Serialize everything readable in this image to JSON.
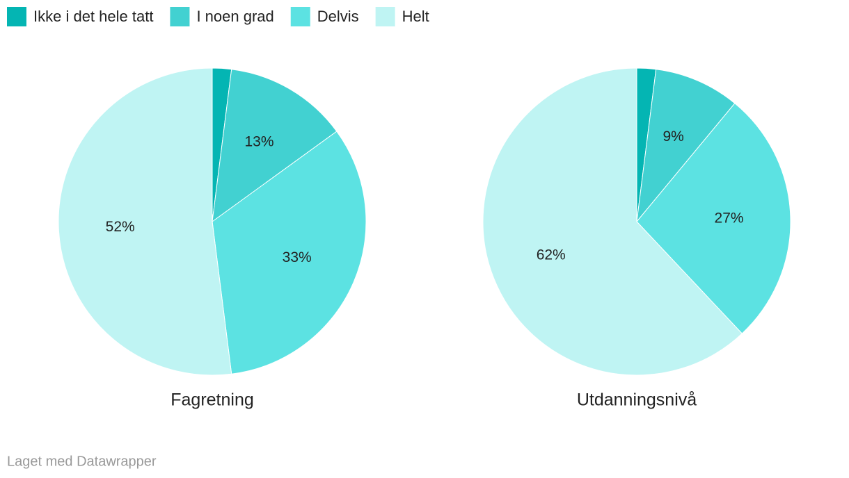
{
  "chart_data": [
    {
      "type": "pie",
      "title": "Fagretning",
      "categories": [
        "Ikke i det hele tatt",
        "I noen grad",
        "Delvis",
        "Helt"
      ],
      "values": [
        2,
        13,
        33,
        52
      ],
      "value_labels": [
        null,
        "13%",
        "33%",
        "52%"
      ],
      "colors": [
        "#04b5b3",
        "#42d1d1",
        "#5ce2e2",
        "#bff4f3"
      ]
    },
    {
      "type": "pie",
      "title": "Utdanningsnivå",
      "categories": [
        "Ikke i det hele tatt",
        "I noen grad",
        "Delvis",
        "Helt"
      ],
      "values": [
        2,
        9,
        27,
        62
      ],
      "value_labels": [
        null,
        "9%",
        "27%",
        "62%"
      ],
      "colors": [
        "#04b5b3",
        "#42d1d1",
        "#5ce2e2",
        "#bff4f3"
      ]
    }
  ],
  "footer": "Laget med Datawrapper"
}
